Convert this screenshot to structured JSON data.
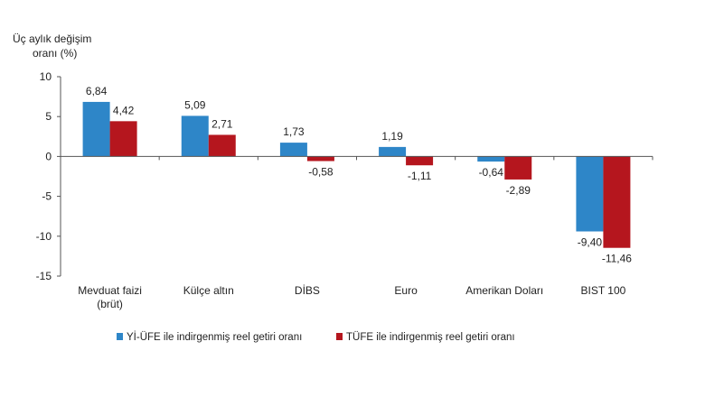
{
  "chart_data": {
    "type": "bar",
    "ylabel": [
      "Üç aylık değişim",
      "oranı (%)"
    ],
    "ylim": [
      -15,
      10
    ],
    "yticks": [
      10,
      5,
      0,
      -5,
      -10,
      -15
    ],
    "categories": [
      [
        "Mevduat faizi",
        "(brüt)"
      ],
      [
        "Külçe altın"
      ],
      [
        "DİBS"
      ],
      [
        "Euro"
      ],
      [
        "Amerikan Doları"
      ],
      [
        "BIST 100"
      ]
    ],
    "series": [
      {
        "name": "Yİ-ÜFE ile indirgenmiş reel getiri oranı",
        "color": "#2e86c8",
        "values": [
          6.84,
          5.09,
          1.73,
          1.19,
          -0.64,
          -9.4
        ],
        "labels": [
          "6,84",
          "5,09",
          "1,73",
          "1,19",
          "-0,64",
          "-9,40"
        ]
      },
      {
        "name": "TÜFE ile indirgenmiş reel getiri oranı",
        "color": "#b5161e",
        "values": [
          4.42,
          2.71,
          -0.58,
          -1.11,
          -2.89,
          -11.46
        ],
        "labels": [
          "4,42",
          "2,71",
          "-0,58",
          "-1,11",
          "-2,89",
          "-11,46"
        ]
      }
    ]
  }
}
